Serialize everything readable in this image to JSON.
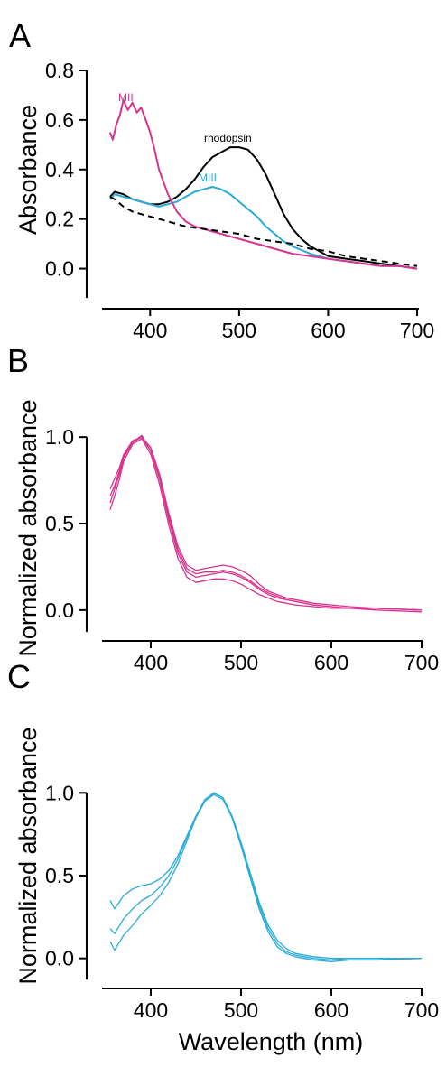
{
  "colors": {
    "magenta": "#d6348f",
    "cyan": "#29acd6",
    "black": "#000000"
  },
  "xlabel": "Wavelength (nm)",
  "chart_data": [
    {
      "panel": "A",
      "type": "line",
      "ylabel": "Absorbance",
      "xlim": [
        350,
        700
      ],
      "ylim": [
        -0.1,
        0.8
      ],
      "xticks": [
        "400",
        "500",
        "600",
        "700"
      ],
      "yticks": [
        "0.0",
        "0.2",
        "0.4",
        "0.6",
        "0.8"
      ],
      "series": [
        {
          "name": "rhodopsin",
          "color": "black",
          "style": "solid",
          "x": [
            355,
            360,
            370,
            380,
            390,
            400,
            410,
            420,
            430,
            440,
            450,
            460,
            470,
            480,
            490,
            500,
            510,
            520,
            530,
            540,
            550,
            560,
            570,
            580,
            590,
            600,
            620,
            640,
            660,
            680,
            700
          ],
          "y": [
            0.29,
            0.31,
            0.3,
            0.28,
            0.27,
            0.26,
            0.26,
            0.27,
            0.29,
            0.32,
            0.36,
            0.41,
            0.45,
            0.47,
            0.49,
            0.49,
            0.48,
            0.44,
            0.38,
            0.3,
            0.22,
            0.16,
            0.12,
            0.09,
            0.07,
            0.05,
            0.04,
            0.03,
            0.02,
            0.01,
            0.0
          ]
        },
        {
          "name": "MIII",
          "color": "cyan",
          "style": "solid",
          "x": [
            355,
            360,
            370,
            380,
            390,
            400,
            410,
            420,
            430,
            440,
            450,
            460,
            470,
            480,
            490,
            500,
            510,
            520,
            530,
            540,
            550,
            560,
            580,
            600,
            620,
            640,
            660,
            680,
            700
          ],
          "y": [
            0.28,
            0.3,
            0.29,
            0.28,
            0.27,
            0.26,
            0.25,
            0.26,
            0.27,
            0.29,
            0.31,
            0.32,
            0.33,
            0.32,
            0.3,
            0.27,
            0.24,
            0.21,
            0.17,
            0.14,
            0.11,
            0.09,
            0.06,
            0.04,
            0.03,
            0.02,
            0.01,
            0.01,
            0.0
          ]
        },
        {
          "name": "MII",
          "color": "magenta",
          "style": "solid",
          "x": [
            355,
            358,
            362,
            366,
            370,
            375,
            380,
            385,
            390,
            395,
            400,
            405,
            410,
            420,
            430,
            440,
            450,
            460,
            470,
            480,
            490,
            500,
            520,
            540,
            560,
            580,
            600,
            620,
            640,
            660,
            680,
            700
          ],
          "y": [
            0.55,
            0.52,
            0.58,
            0.62,
            0.68,
            0.64,
            0.67,
            0.63,
            0.65,
            0.6,
            0.55,
            0.48,
            0.4,
            0.3,
            0.23,
            0.19,
            0.17,
            0.16,
            0.15,
            0.14,
            0.13,
            0.12,
            0.1,
            0.08,
            0.06,
            0.05,
            0.04,
            0.03,
            0.02,
            0.01,
            0.01,
            0.0
          ]
        },
        {
          "name": "",
          "color": "black",
          "style": "dashed",
          "x": [
            355,
            360,
            370,
            380,
            390,
            400,
            420,
            440,
            460,
            480,
            500,
            520,
            540,
            560,
            580,
            600,
            620,
            640,
            660,
            680,
            700
          ],
          "y": [
            0.29,
            0.28,
            0.25,
            0.23,
            0.22,
            0.21,
            0.19,
            0.17,
            0.16,
            0.15,
            0.14,
            0.12,
            0.11,
            0.1,
            0.08,
            0.07,
            0.05,
            0.04,
            0.03,
            0.02,
            0.01
          ]
        }
      ],
      "annotations": [
        {
          "text": "MII",
          "color": "magenta"
        },
        {
          "text": "rhodopsin",
          "color": "black"
        },
        {
          "text": "MIII",
          "color": "cyan"
        }
      ]
    },
    {
      "panel": "B",
      "type": "line",
      "ylabel": "Normalized absorbance",
      "xlim": [
        350,
        700
      ],
      "ylim": [
        -0.1,
        1.1
      ],
      "xticks": [
        "400",
        "500",
        "600",
        "700"
      ],
      "yticks": [
        "0.0",
        "0.5",
        "1.0"
      ],
      "series": [
        {
          "color": "magenta",
          "x": [
            355,
            360,
            365,
            370,
            380,
            390,
            400,
            410,
            420,
            430,
            440,
            450,
            460,
            470,
            480,
            490,
            500,
            510,
            520,
            530,
            540,
            550,
            560,
            580,
            600,
            620,
            650,
            700
          ],
          "y": [
            0.62,
            0.7,
            0.78,
            0.88,
            0.97,
            1.0,
            0.92,
            0.75,
            0.52,
            0.33,
            0.22,
            0.19,
            0.2,
            0.21,
            0.22,
            0.21,
            0.19,
            0.16,
            0.12,
            0.09,
            0.07,
            0.06,
            0.05,
            0.03,
            0.02,
            0.01,
            0.01,
            0.0
          ]
        },
        {
          "color": "magenta",
          "x": [
            355,
            360,
            365,
            370,
            380,
            390,
            400,
            410,
            420,
            430,
            440,
            450,
            460,
            470,
            480,
            490,
            500,
            510,
            520,
            530,
            540,
            550,
            560,
            580,
            600,
            620,
            650,
            700
          ],
          "y": [
            0.7,
            0.76,
            0.82,
            0.9,
            0.98,
            1.0,
            0.94,
            0.78,
            0.56,
            0.37,
            0.26,
            0.23,
            0.24,
            0.25,
            0.26,
            0.25,
            0.23,
            0.2,
            0.15,
            0.11,
            0.09,
            0.07,
            0.06,
            0.04,
            0.03,
            0.02,
            0.01,
            0.0
          ]
        },
        {
          "color": "magenta",
          "x": [
            355,
            360,
            365,
            370,
            380,
            390,
            400,
            410,
            420,
            430,
            440,
            450,
            460,
            470,
            480,
            490,
            500,
            510,
            520,
            530,
            540,
            550,
            560,
            580,
            600,
            620,
            650,
            700
          ],
          "y": [
            0.58,
            0.66,
            0.75,
            0.86,
            0.96,
            0.99,
            0.9,
            0.72,
            0.49,
            0.3,
            0.19,
            0.16,
            0.17,
            0.18,
            0.18,
            0.17,
            0.15,
            0.12,
            0.09,
            0.07,
            0.05,
            0.04,
            0.03,
            0.02,
            0.01,
            0.01,
            0.0,
            -0.01
          ]
        },
        {
          "color": "magenta",
          "x": [
            355,
            360,
            365,
            370,
            380,
            390,
            400,
            410,
            420,
            430,
            440,
            450,
            460,
            470,
            480,
            490,
            500,
            510,
            520,
            530,
            540,
            550,
            560,
            580,
            600,
            620,
            650,
            700
          ],
          "y": [
            0.66,
            0.72,
            0.8,
            0.89,
            0.97,
            1.01,
            0.92,
            0.76,
            0.54,
            0.35,
            0.24,
            0.21,
            0.22,
            0.22,
            0.23,
            0.22,
            0.2,
            0.17,
            0.13,
            0.1,
            0.08,
            0.06,
            0.05,
            0.03,
            0.02,
            0.01,
            0.01,
            0.0
          ]
        }
      ]
    },
    {
      "panel": "C",
      "type": "line",
      "ylabel": "Normalized absorbance",
      "xlim": [
        350,
        700
      ],
      "ylim": [
        -0.1,
        1.1
      ],
      "xticks": [
        "400",
        "500",
        "600",
        "700"
      ],
      "yticks": [
        "0.0",
        "0.5",
        "1.0"
      ],
      "series": [
        {
          "color": "cyan",
          "x": [
            355,
            360,
            370,
            380,
            390,
            400,
            410,
            420,
            430,
            440,
            450,
            460,
            470,
            480,
            490,
            500,
            510,
            520,
            530,
            540,
            550,
            560,
            570,
            580,
            600,
            620,
            650,
            700
          ],
          "y": [
            0.35,
            0.3,
            0.38,
            0.42,
            0.44,
            0.45,
            0.48,
            0.53,
            0.62,
            0.74,
            0.86,
            0.96,
            1.0,
            0.97,
            0.86,
            0.7,
            0.52,
            0.34,
            0.2,
            0.11,
            0.06,
            0.03,
            0.02,
            0.01,
            0.0,
            0.0,
            0.0,
            0.0
          ]
        },
        {
          "color": "cyan",
          "x": [
            355,
            360,
            370,
            380,
            390,
            400,
            410,
            420,
            430,
            440,
            450,
            460,
            470,
            480,
            490,
            500,
            510,
            520,
            530,
            540,
            550,
            560,
            570,
            580,
            600,
            620,
            650,
            700
          ],
          "y": [
            0.18,
            0.15,
            0.24,
            0.3,
            0.35,
            0.38,
            0.43,
            0.5,
            0.6,
            0.73,
            0.86,
            0.96,
            1.0,
            0.97,
            0.86,
            0.7,
            0.51,
            0.32,
            0.18,
            0.09,
            0.04,
            0.02,
            0.01,
            0.0,
            -0.01,
            0.0,
            0.0,
            0.0
          ]
        },
        {
          "color": "cyan",
          "x": [
            355,
            360,
            370,
            380,
            390,
            400,
            410,
            420,
            430,
            440,
            450,
            460,
            470,
            480,
            490,
            500,
            510,
            520,
            530,
            540,
            550,
            560,
            570,
            580,
            600,
            620,
            650,
            700
          ],
          "y": [
            0.1,
            0.05,
            0.14,
            0.2,
            0.27,
            0.32,
            0.38,
            0.46,
            0.57,
            0.71,
            0.85,
            0.95,
            0.99,
            0.96,
            0.85,
            0.68,
            0.49,
            0.3,
            0.16,
            0.07,
            0.03,
            0.01,
            0.0,
            -0.01,
            -0.02,
            -0.01,
            -0.01,
            0.0
          ]
        }
      ]
    }
  ]
}
